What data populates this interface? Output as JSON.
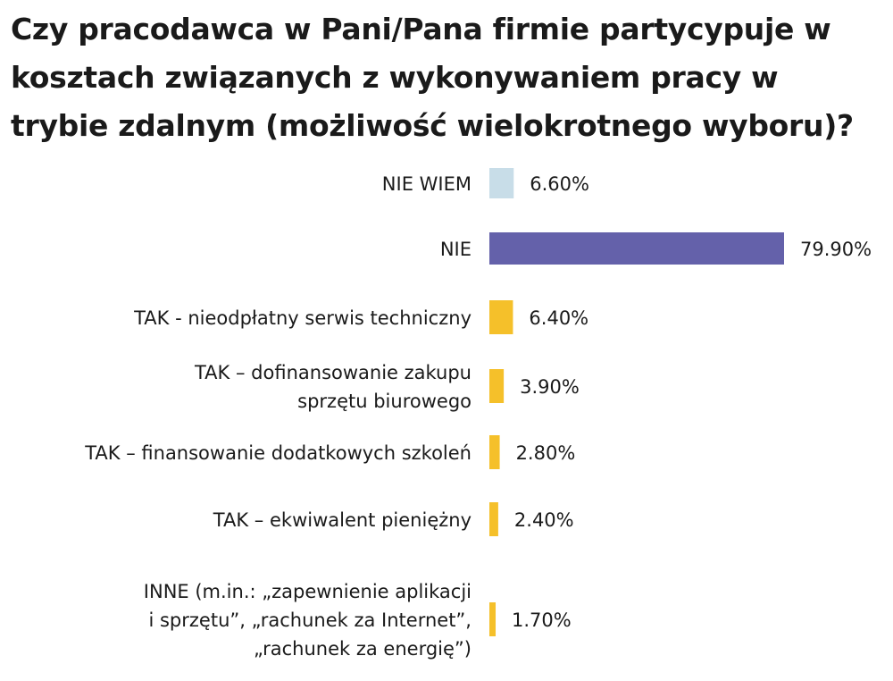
{
  "chart_data": {
    "type": "bar",
    "orientation": "horizontal",
    "title": "Czy pracodawca w Pani/Pana firmie partycypuje w kosztach związanych z wykonywaniem pracy w trybie zdalnym (możliwość wielokrotnego wyboru)?",
    "categories": [
      [
        "NIE WIEM"
      ],
      [
        "NIE"
      ],
      [
        "TAK - nieodpłatny serwis techniczny"
      ],
      [
        "TAK – dofinansowanie zakupu",
        "sprzętu biurowego"
      ],
      [
        "TAK – finansowanie dodatkowych szkoleń"
      ],
      [
        "TAK – ekwiwalent pieniężny"
      ],
      [
        "INNE (m.in.: „zapewnienie aplikacji",
        "i sprzętu”, „rachunek za Internet”,",
        "„rachunek za energię”)"
      ]
    ],
    "values": [
      6.6,
      79.9,
      6.4,
      3.9,
      2.8,
      2.4,
      1.7
    ],
    "value_labels": [
      "6.60%",
      "79.90%",
      "6.40%",
      "3.90%",
      "2.80%",
      "2.40%",
      "1.70%"
    ],
    "colors": [
      "#c8dde8",
      "#6461aa",
      "#f5c02a",
      "#f5c02a",
      "#f5c02a",
      "#f5c02a",
      "#f5c02a"
    ],
    "xlim": [
      0,
      79.9
    ],
    "xlabel": "",
    "ylabel": "",
    "grid": false,
    "legend": "none"
  }
}
